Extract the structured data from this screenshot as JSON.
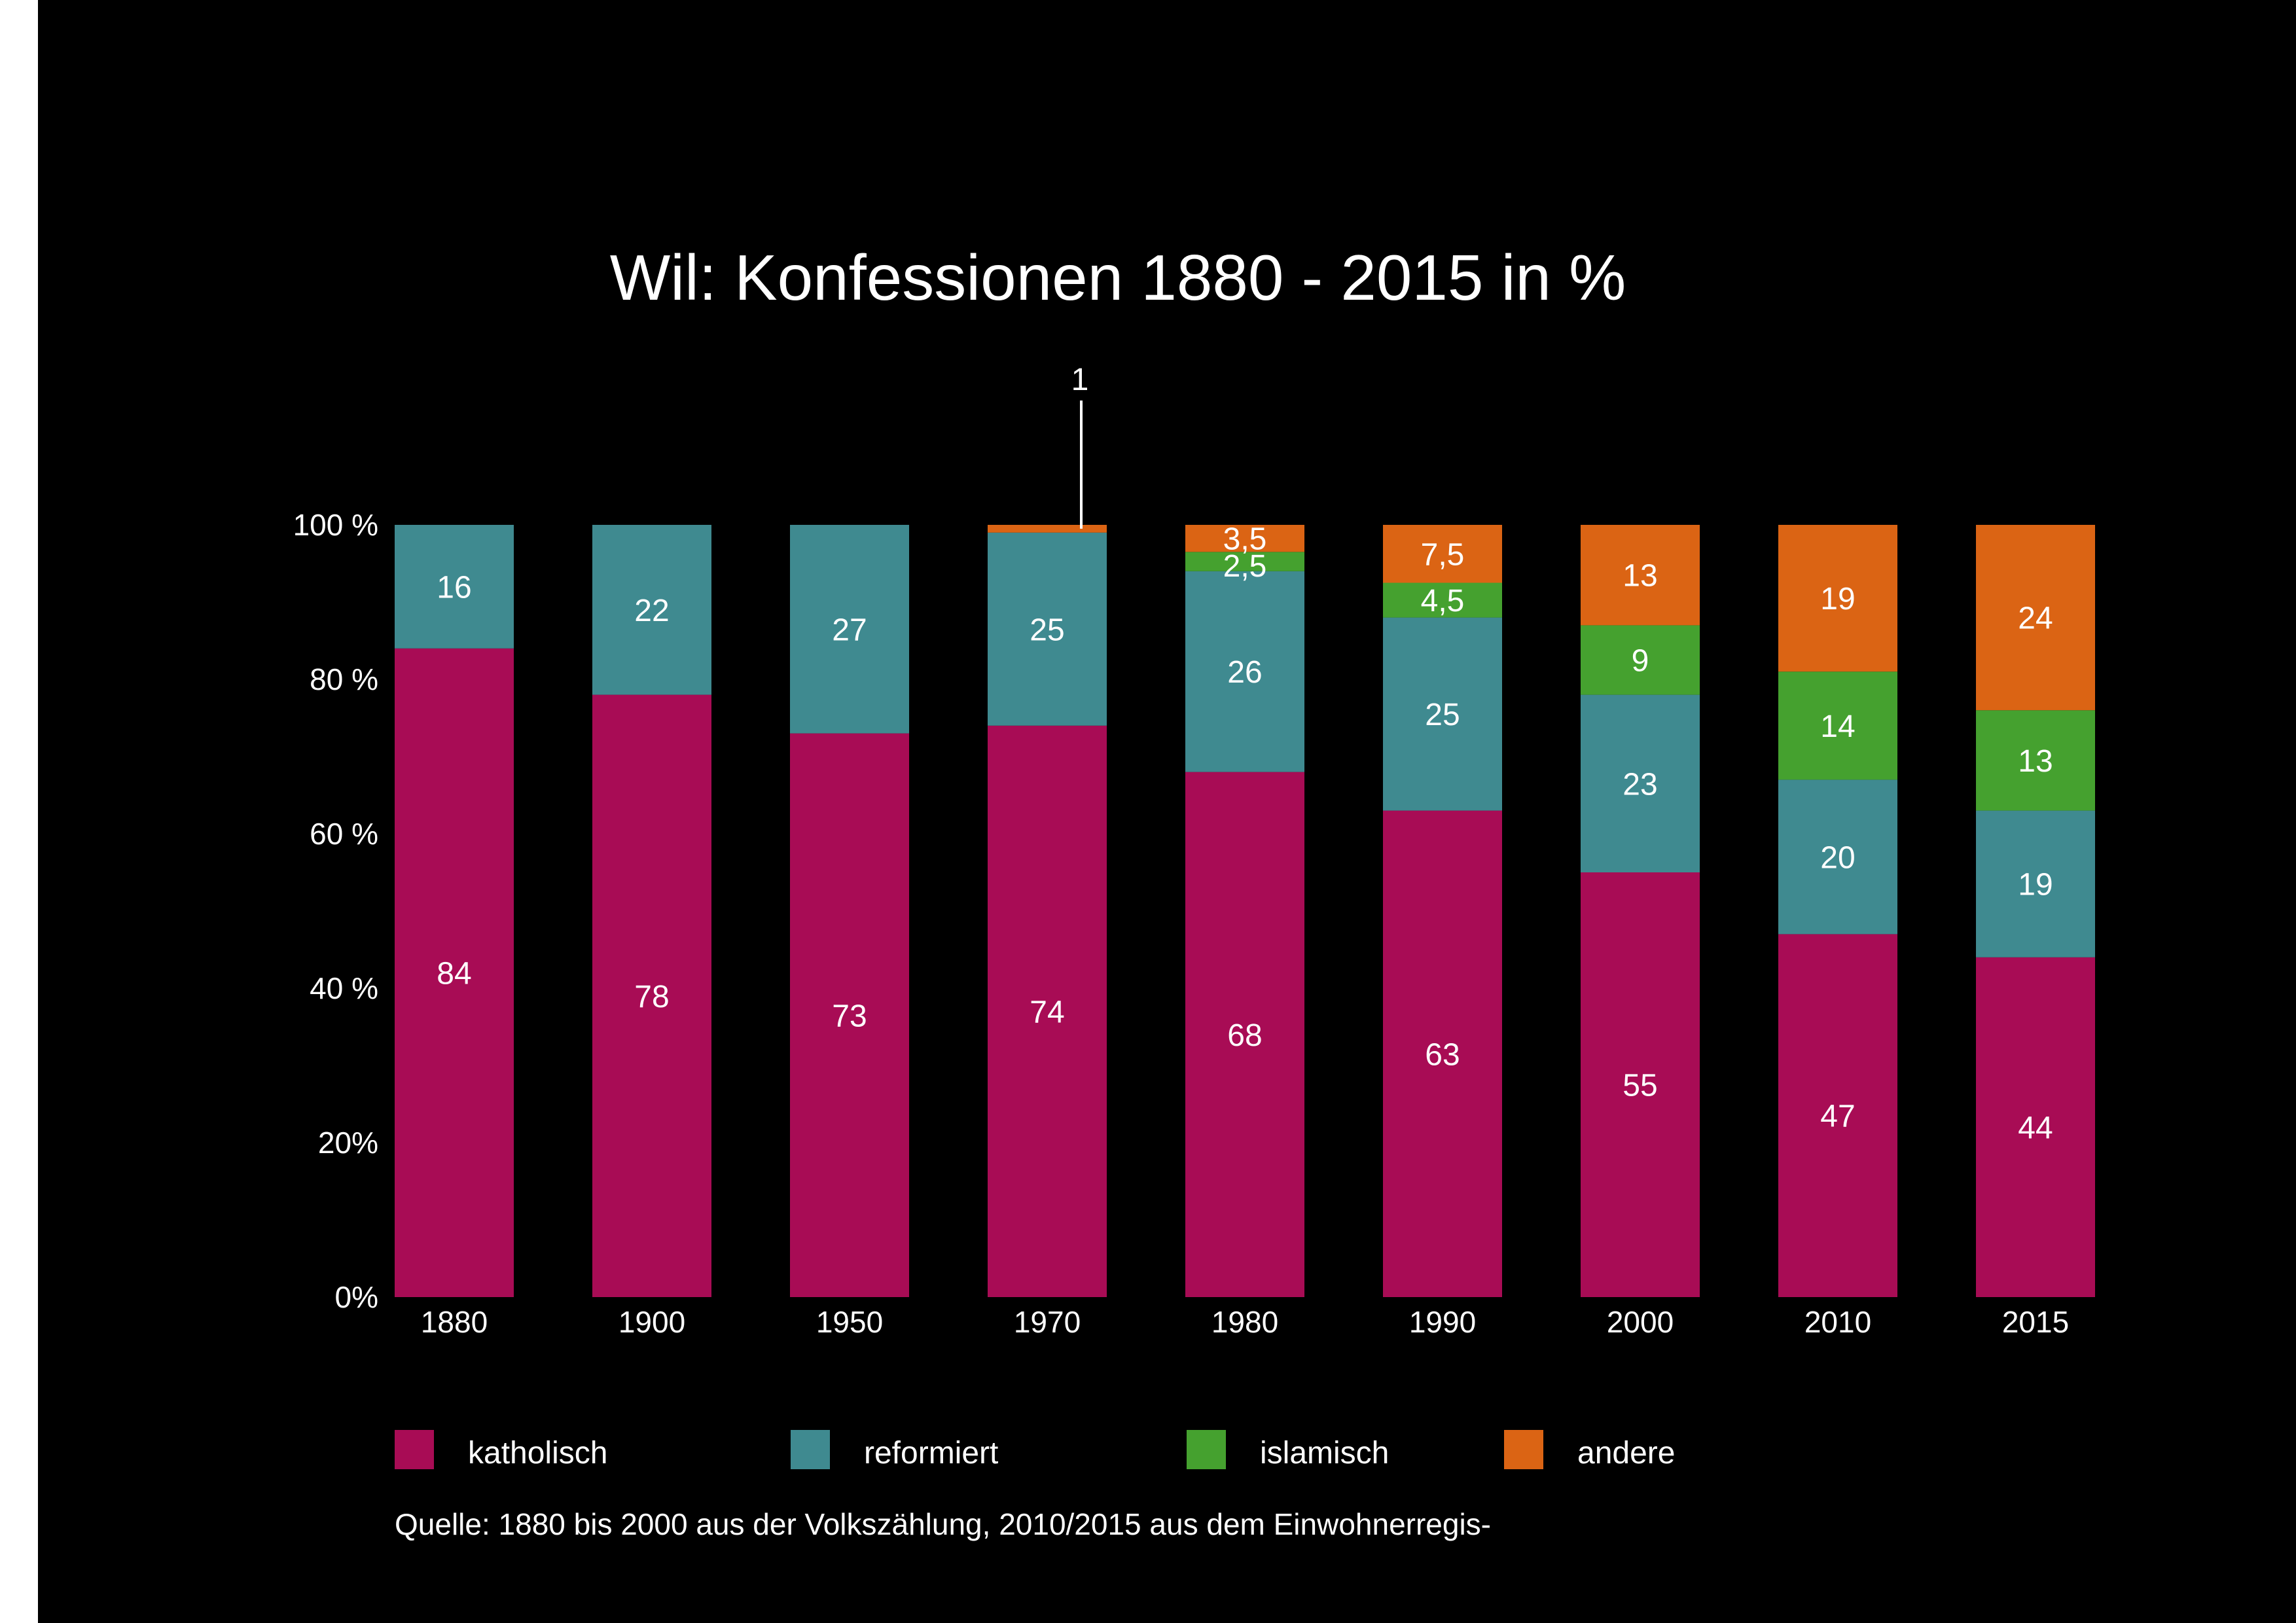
{
  "chart_data": {
    "type": "bar",
    "stacked": true,
    "title": "Wil: Konfessionen 1880 - 2015 in  %",
    "categories": [
      "1880",
      "1900",
      "1950",
      "1970",
      "1980",
      "1990",
      "2000",
      "2010",
      "2015"
    ],
    "y_ticks": [
      "0%",
      "20%",
      "40 %",
      "60 %",
      "80 %",
      "100 %"
    ],
    "ylim": [
      0,
      100
    ],
    "series": [
      {
        "name": "katholisch",
        "color": "#A80C55",
        "values": [
          84,
          78,
          73,
          74,
          68,
          63,
          55,
          47,
          44
        ],
        "labels": [
          "84",
          "78",
          "73",
          "74",
          "68",
          "63",
          "55",
          "47",
          "44"
        ]
      },
      {
        "name": "reformiert",
        "color": "#3F8A90",
        "values": [
          16,
          22,
          27,
          25,
          26,
          25,
          23,
          20,
          19
        ],
        "labels": [
          "16",
          "22",
          "27",
          "25",
          "26",
          "25",
          "23",
          "20",
          "19"
        ]
      },
      {
        "name": "islamisch",
        "color": "#45A12F",
        "values": [
          0,
          0,
          0,
          0,
          2.5,
          4.5,
          9,
          14,
          13
        ],
        "labels": [
          "",
          "",
          "",
          "",
          "2,5",
          "4,5",
          "9",
          "14",
          "13"
        ]
      },
      {
        "name": "andere",
        "color": "#DB6414",
        "values": [
          0,
          0,
          0,
          1,
          3.5,
          7.5,
          13,
          19,
          24
        ],
        "labels": [
          "",
          "",
          "",
          "1",
          "3,5",
          "7,5",
          "13",
          "19",
          "24"
        ]
      }
    ],
    "legend_position": "bottom",
    "source": "Quelle: 1880 bis 2000 aus der Volkszählung, 2010/2015 aus dem Einwohnerregis-"
  }
}
